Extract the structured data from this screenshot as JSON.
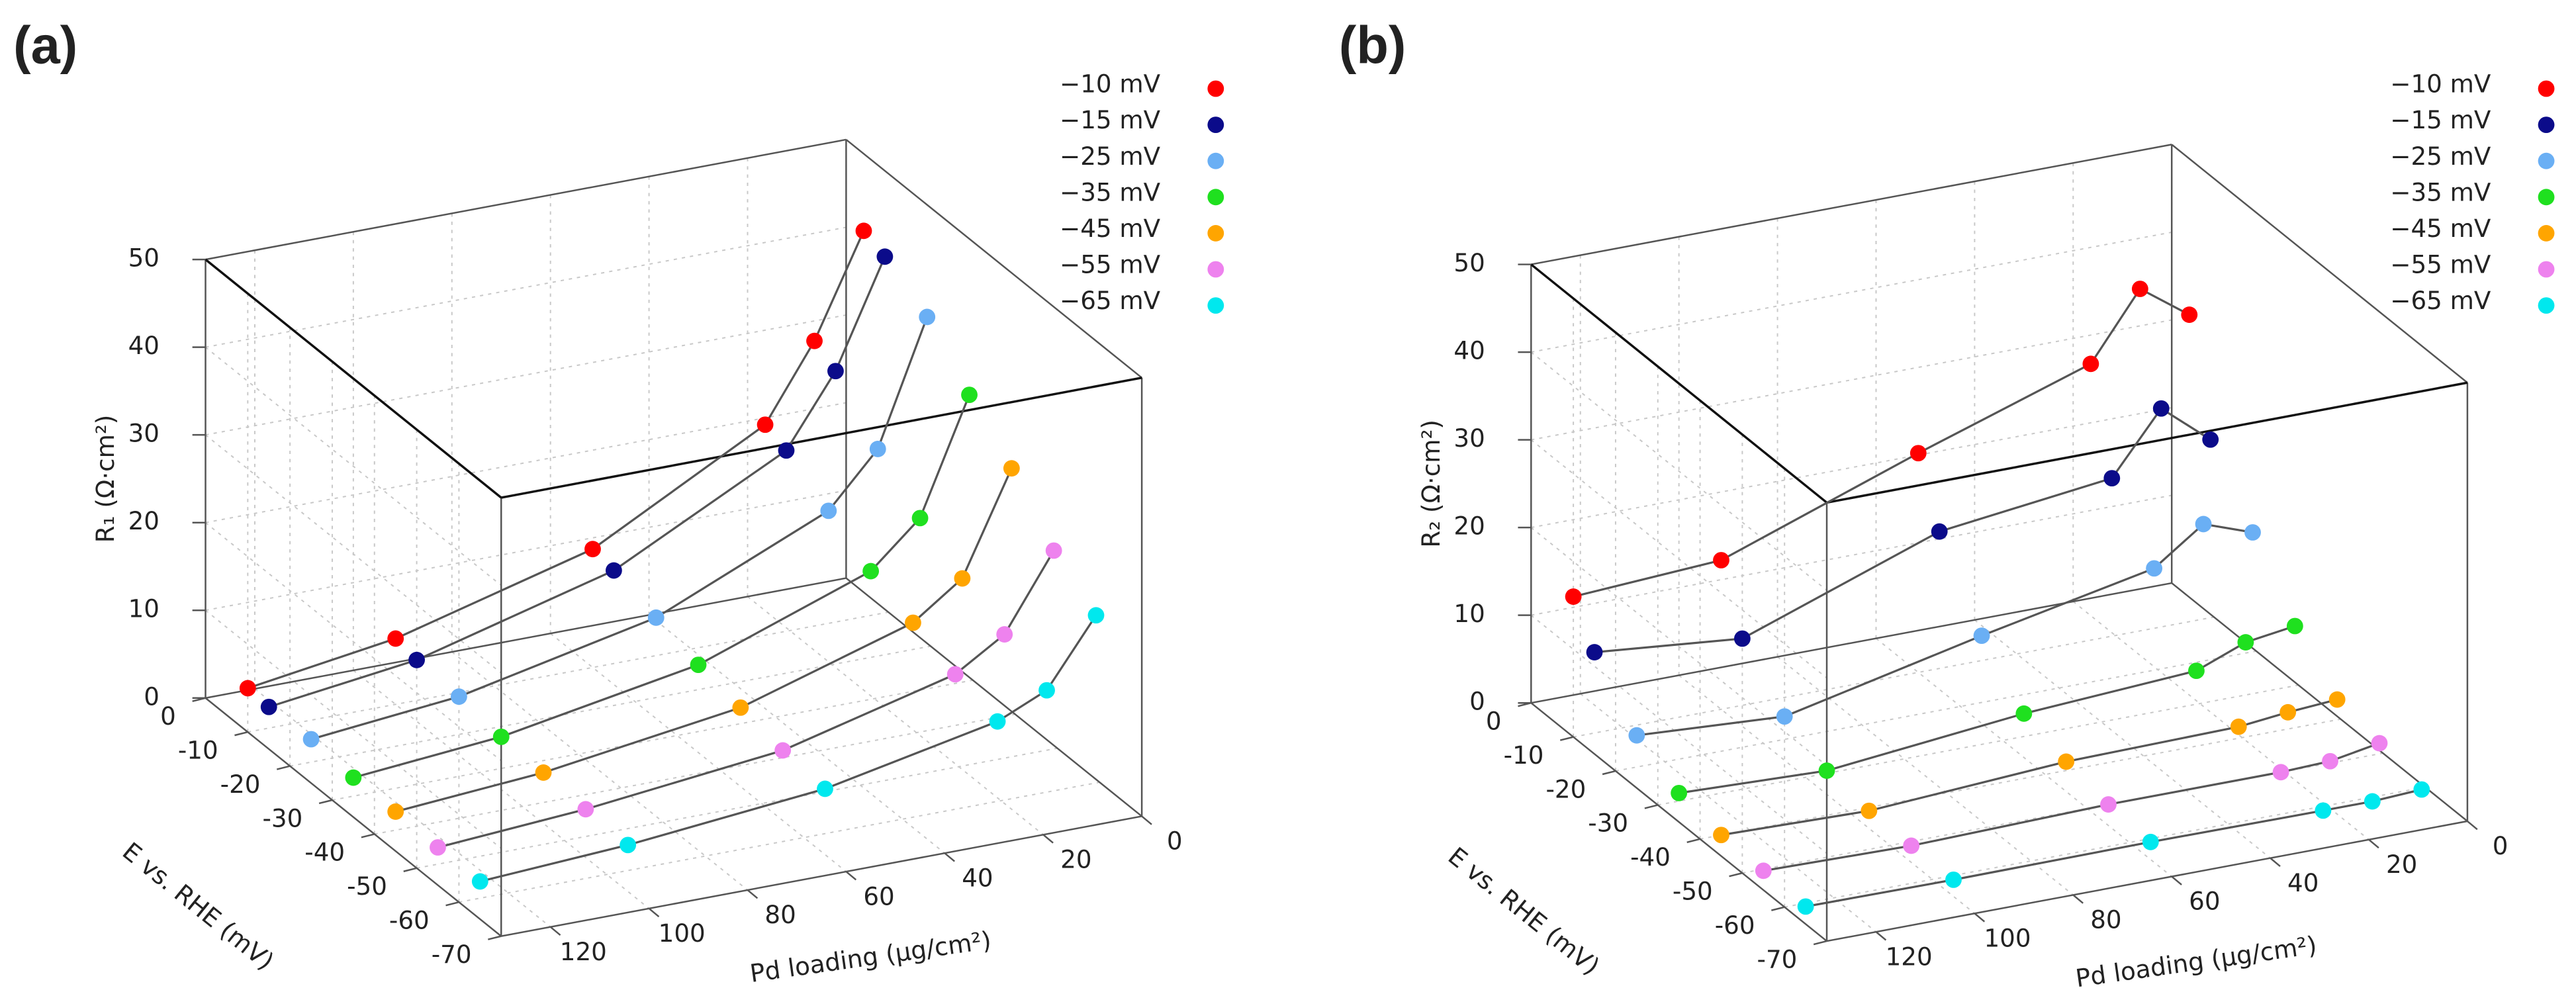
{
  "chart_data": [
    {
      "type": "scatter3d",
      "title": "(a)",
      "x_label": "Pd loading (μg/cm²)",
      "y_label": "E vs. RHE (mV)",
      "z_label": "R₁ (Ω·cm²)",
      "x": [
        130,
        100,
        60,
        25,
        15,
        5
      ],
      "xlim": [
        0,
        130
      ],
      "xticks": [
        0,
        20,
        40,
        60,
        80,
        100,
        120
      ],
      "ylim": [
        -70,
        0
      ],
      "yticks": [
        -70,
        -60,
        -50,
        -40,
        -30,
        -20,
        -10,
        0
      ],
      "zlim": [
        0,
        50
      ],
      "zticks": [
        0,
        10,
        20,
        30,
        40,
        50
      ],
      "grid": true,
      "series": [
        {
          "name": "−10 mV",
          "e": -10,
          "color": "#ff0000",
          "values": [
            5,
            7.5,
            13.5,
            24,
            32.5,
            44
          ]
        },
        {
          "name": "−15 mV",
          "e": -15,
          "color": "#0b0b8a",
          "values": [
            4.8,
            7,
            13,
            23,
            31,
            43
          ]
        },
        {
          "name": "−25 mV",
          "e": -25,
          "color": "#6aaff4",
          "values": [
            5,
            6.7,
            11.5,
            20,
            26,
            40
          ]
        },
        {
          "name": "−35 mV",
          "e": -35,
          "color": "#1fe01f",
          "values": [
            4.5,
            6,
            10,
            17,
            22,
            35
          ]
        },
        {
          "name": "−45 mV",
          "e": -45,
          "color": "#ffa500",
          "values": [
            4.5,
            5.8,
            9,
            15,
            19,
            30.5
          ]
        },
        {
          "name": "−55 mV",
          "e": -55,
          "color": "#ee82ee",
          "values": [
            4.3,
            5.5,
            8,
            13,
            16.5,
            25
          ]
        },
        {
          "name": "−65 mV",
          "e": -65,
          "color": "#00e8ee",
          "values": [
            4.3,
            5.3,
            7.5,
            11.5,
            14,
            21.5
          ]
        }
      ]
    },
    {
      "type": "scatter3d",
      "title": "(b)",
      "x_label": "Pd loading (μg/cm²)",
      "y_label": "E vs. RHE (mV)",
      "z_label": "R₂ (Ω·cm²)",
      "x": [
        130,
        100,
        60,
        25,
        15,
        5
      ],
      "xlim": [
        0,
        130
      ],
      "xticks": [
        0,
        20,
        40,
        60,
        80,
        100,
        120
      ],
      "ylim": [
        -70,
        0
      ],
      "yticks": [
        -70,
        -60,
        -50,
        -40,
        -30,
        -20,
        -10,
        0
      ],
      "zlim": [
        0,
        50
      ],
      "zticks": [
        0,
        10,
        20,
        30,
        40,
        50
      ],
      "grid": true,
      "series": [
        {
          "name": "−10 mV",
          "e": -10,
          "color": "#ff0000",
          "values": [
            16,
            17,
            25,
            31.5,
            39,
            35
          ]
        },
        {
          "name": "−15 mV",
          "e": -15,
          "color": "#0b0b8a",
          "values": [
            11.6,
            10,
            18,
            20.4,
            27.3,
            22.7
          ]
        },
        {
          "name": "−25 mV",
          "e": -25,
          "color": "#6aaff4",
          "values": [
            6,
            5,
            10,
            14,
            18,
            16
          ]
        },
        {
          "name": "−35 mV",
          "e": -35,
          "color": "#1fe01f",
          "values": [
            3.3,
            2.7,
            5,
            6.2,
            8.4,
            9.2
          ]
        },
        {
          "name": "−45 mV",
          "e": -45,
          "color": "#ffa500",
          "values": [
            2.4,
            2,
            3.4,
            3.7,
            4.3,
            4.7
          ]
        },
        {
          "name": "−55 mV",
          "e": -55,
          "color": "#ee82ee",
          "values": [
            2.2,
            1.9,
            2.4,
            2.4,
            2.6,
            3.6
          ]
        },
        {
          "name": "−65 mV",
          "e": -65,
          "color": "#00e8ee",
          "values": [
            2,
            1.9,
            2,
            1.9,
            1.9,
            2.2
          ]
        }
      ]
    }
  ]
}
